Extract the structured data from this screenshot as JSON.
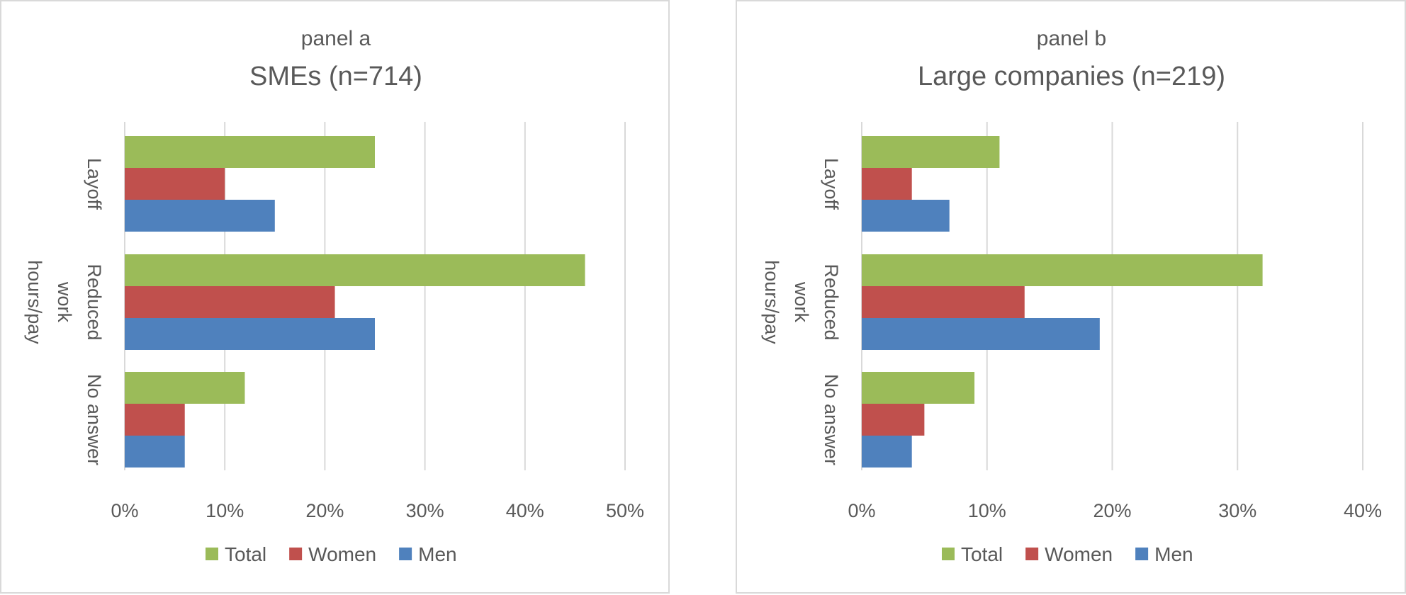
{
  "colors": {
    "Total": "#9bbb59",
    "Women": "#c0504d",
    "Men": "#4f81bd"
  },
  "chart_data": [
    {
      "type": "bar",
      "orientation": "horizontal",
      "subtitle": "panel a",
      "title": "SMEs (n=714)",
      "categories": [
        "Layoff",
        "Reduced work hours/pay",
        "No answer"
      ],
      "series": [
        {
          "name": "Total",
          "values": [
            25,
            46,
            12
          ]
        },
        {
          "name": "Women",
          "values": [
            10,
            21,
            6
          ]
        },
        {
          "name": "Men",
          "values": [
            15,
            25,
            6
          ]
        }
      ],
      "xlim": [
        0,
        50
      ],
      "xticks": [
        "0%",
        "10%",
        "20%",
        "30%",
        "40%",
        "50%"
      ],
      "unit": "%",
      "grid": true,
      "legend": "bottom"
    },
    {
      "type": "bar",
      "orientation": "horizontal",
      "subtitle": "panel b",
      "title": "Large companies (n=219)",
      "categories": [
        "Layoff",
        "Reduced work hours/pay",
        "No answer"
      ],
      "series": [
        {
          "name": "Total",
          "values": [
            11,
            32,
            9
          ]
        },
        {
          "name": "Women",
          "values": [
            4,
            13,
            5
          ]
        },
        {
          "name": "Men",
          "values": [
            7,
            19,
            4
          ]
        }
      ],
      "xlim": [
        0,
        40
      ],
      "xticks": [
        "0%",
        "10%",
        "20%",
        "30%",
        "40%"
      ],
      "unit": "%",
      "grid": true,
      "legend": "bottom"
    }
  ]
}
